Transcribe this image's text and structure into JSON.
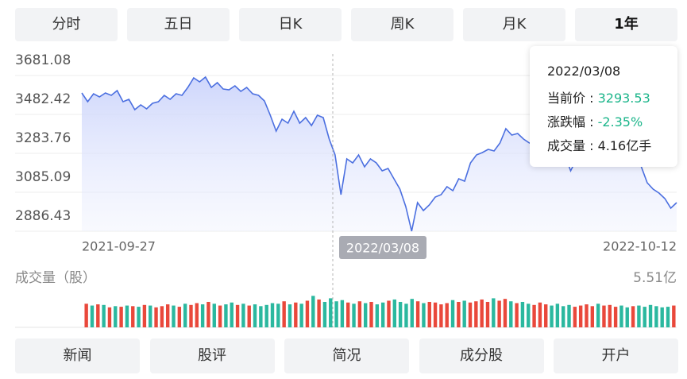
{
  "tabs": {
    "items": [
      "分时",
      "五日",
      "日K",
      "周K",
      "月K",
      "1年"
    ],
    "active": 5
  },
  "chart_data": [
    {
      "type": "line",
      "color": "#4b6fe0",
      "categories": [
        "2021-09-27",
        null,
        null,
        null,
        null,
        null,
        null,
        null,
        null,
        null,
        null,
        null,
        null,
        null,
        null,
        null,
        null,
        null,
        null,
        null,
        null,
        null,
        null,
        null,
        null,
        null,
        null,
        null,
        null,
        null,
        null,
        null,
        null,
        null,
        null,
        null,
        null,
        null,
        null,
        null,
        null,
        null,
        null,
        null,
        null,
        null,
        null,
        null,
        null,
        null,
        null,
        null,
        null,
        null,
        null,
        null,
        null,
        null,
        null,
        null,
        null,
        null,
        null,
        null,
        null,
        null,
        null,
        null,
        null,
        null,
        null,
        null,
        null,
        null,
        null,
        null,
        null,
        null,
        null,
        null,
        null,
        null,
        null,
        null,
        null,
        null,
        null,
        null,
        null,
        null,
        null,
        null,
        null,
        null,
        null,
        null,
        null,
        null,
        null,
        null,
        null,
        "2022-10-12"
      ],
      "values": [
        3591.8,
        3547.2,
        3587.8,
        3571.5,
        3591.8,
        3579.7,
        3604.0,
        3547.2,
        3559.4,
        3506.7,
        3531.0,
        3510.7,
        3539.1,
        3547.2,
        3579.7,
        3559.4,
        3587.8,
        3579.7,
        3620.2,
        3668.8,
        3648.6,
        3672.9,
        3620.2,
        3644.5,
        3612.1,
        3608.0,
        3628.3,
        3599.9,
        3620.2,
        3587.8,
        3579.7,
        3551.3,
        3478.3,
        3397.2,
        3458.0,
        3437.7,
        3498.6,
        3437.7,
        3466.1,
        3425.6,
        3478.3,
        3466.1,
        3356.7,
        3275.6,
        3072.9,
        3255.3,
        3235.0,
        3275.6,
        3214.8,
        3255.3,
        3235.0,
        3194.5,
        3206.7,
        3154.0,
        3101.3,
        3012.1,
        2886.43,
        3032.3,
        2991.8,
        3020.2,
        3060.7,
        3072.9,
        3113.4,
        3093.2,
        3154.0,
        3141.8,
        3235.0,
        3275.6,
        3287.7,
        3304.0,
        3295.9,
        3336.4,
        3409.4,
        3376.9,
        3385.0,
        3356.7,
        3336.4,
        3344.5,
        3356.7,
        3376.9,
        3356.7,
        3336.4,
        3275.6,
        3194.5,
        3255.3,
        3275.6,
        3295.9,
        3304.0,
        3275.6,
        3287.7,
        3316.1,
        3336.4,
        3295.9,
        3255.3,
        3275.6,
        3214.8,
        3133.7,
        3101.3,
        3081.0,
        3052.6,
        3004.0,
        3032.3
      ],
      "ylim": [
        2886.43,
        3681.08
      ],
      "yticks": [
        3681.08,
        3482.42,
        3283.76,
        3085.09,
        2886.43
      ],
      "grid": true
    },
    {
      "type": "bar",
      "title": "成交量（股）",
      "up_color": "#e9483b",
      "down_color": "#2bb89f",
      "values": [
        3.9,
        3.6,
        3.8,
        3.7,
        3.3,
        3.5,
        3.4,
        3.6,
        3.5,
        3.4,
        3.7,
        3.6,
        3.3,
        3.5,
        3.8,
        3.6,
        3.4,
        3.9,
        3.7,
        4.0,
        3.8,
        4.2,
        3.9,
        3.6,
        3.8,
        4.1,
        3.7,
        3.9,
        3.6,
        3.8,
        3.5,
        3.7,
        4.0,
        3.9,
        4.3,
        3.8,
        4.1,
        3.9,
        4.4,
        5.2,
        4.6,
        4.2,
        4.8,
        4.3,
        4.5,
        4.1,
        3.9,
        4.3,
        4.0,
        4.2,
        3.8,
        4.1,
        4.4,
        4.6,
        4.2,
        3.9,
        4.7,
        4.3,
        4.0,
        4.2,
        4.1,
        3.8,
        4.0,
        4.5,
        4.2,
        4.4,
        4.1,
        4.3,
        4.6,
        4.2,
        4.8,
        4.4,
        4.7,
        4.3,
        4.0,
        4.2,
        3.9,
        3.7,
        4.1,
        3.8,
        3.6,
        3.9,
        3.5,
        3.7,
        3.4,
        3.6,
        3.8,
        3.5,
        3.9,
        3.6,
        3.7,
        3.4,
        3.6,
        3.3,
        3.5,
        3.6,
        3.4,
        3.7,
        3.5,
        3.3,
        3.4,
        3.6
      ],
      "ylim": [
        0,
        5.51
      ],
      "yticks": [
        {
          "value": 5.51,
          "label": "5.51亿"
        }
      ]
    }
  ],
  "tooltip": {
    "date": "2022/03/08",
    "rows": [
      {
        "label": "当前价 : ",
        "value": "3293.53"
      },
      {
        "label": "涨跌幅 : ",
        "value": "-2.35%"
      },
      {
        "label": "成交量 : ",
        "value": "4.16亿手"
      }
    ]
  },
  "buttons": [
    "新闻",
    "股评",
    "简况",
    "成分股",
    "开户"
  ]
}
